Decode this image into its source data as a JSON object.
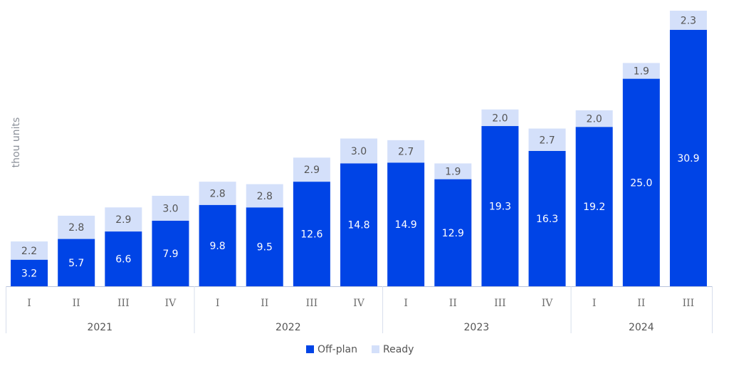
{
  "chart_data": {
    "type": "bar",
    "stacked": true,
    "ylabel": "thou units",
    "groups": [
      {
        "year": "2021",
        "quarters": [
          "I",
          "II",
          "III",
          "IV"
        ]
      },
      {
        "year": "2022",
        "quarters": [
          "I",
          "II",
          "III",
          "IV"
        ]
      },
      {
        "year": "2023",
        "quarters": [
          "I",
          "II",
          "III",
          "IV"
        ]
      },
      {
        "year": "2024",
        "quarters": [
          "I",
          "II",
          "III"
        ]
      }
    ],
    "categories": [
      "2021 I",
      "2021 II",
      "2021 III",
      "2021 IV",
      "2022 I",
      "2022 II",
      "2022 III",
      "2022 IV",
      "2023 I",
      "2023 II",
      "2023 III",
      "2023 IV",
      "2024 I",
      "2024 II",
      "2024 III"
    ],
    "series": [
      {
        "name": "Off-plan",
        "color": "#0044e6",
        "label_color": "#ffffff",
        "values": [
          3.2,
          5.7,
          6.6,
          7.9,
          9.8,
          9.5,
          12.6,
          14.8,
          14.9,
          12.9,
          19.3,
          16.3,
          19.2,
          25.0,
          30.9
        ]
      },
      {
        "name": "Ready",
        "color": "#d4e0fa",
        "label_color": "#555555",
        "values": [
          2.2,
          2.8,
          2.9,
          3.0,
          2.8,
          2.8,
          2.9,
          3.0,
          2.7,
          1.9,
          2.0,
          2.7,
          2.0,
          1.9,
          2.3
        ]
      }
    ],
    "ylim": [
      0,
      33.2
    ],
    "grid": false,
    "legend_position": "bottom-center"
  }
}
